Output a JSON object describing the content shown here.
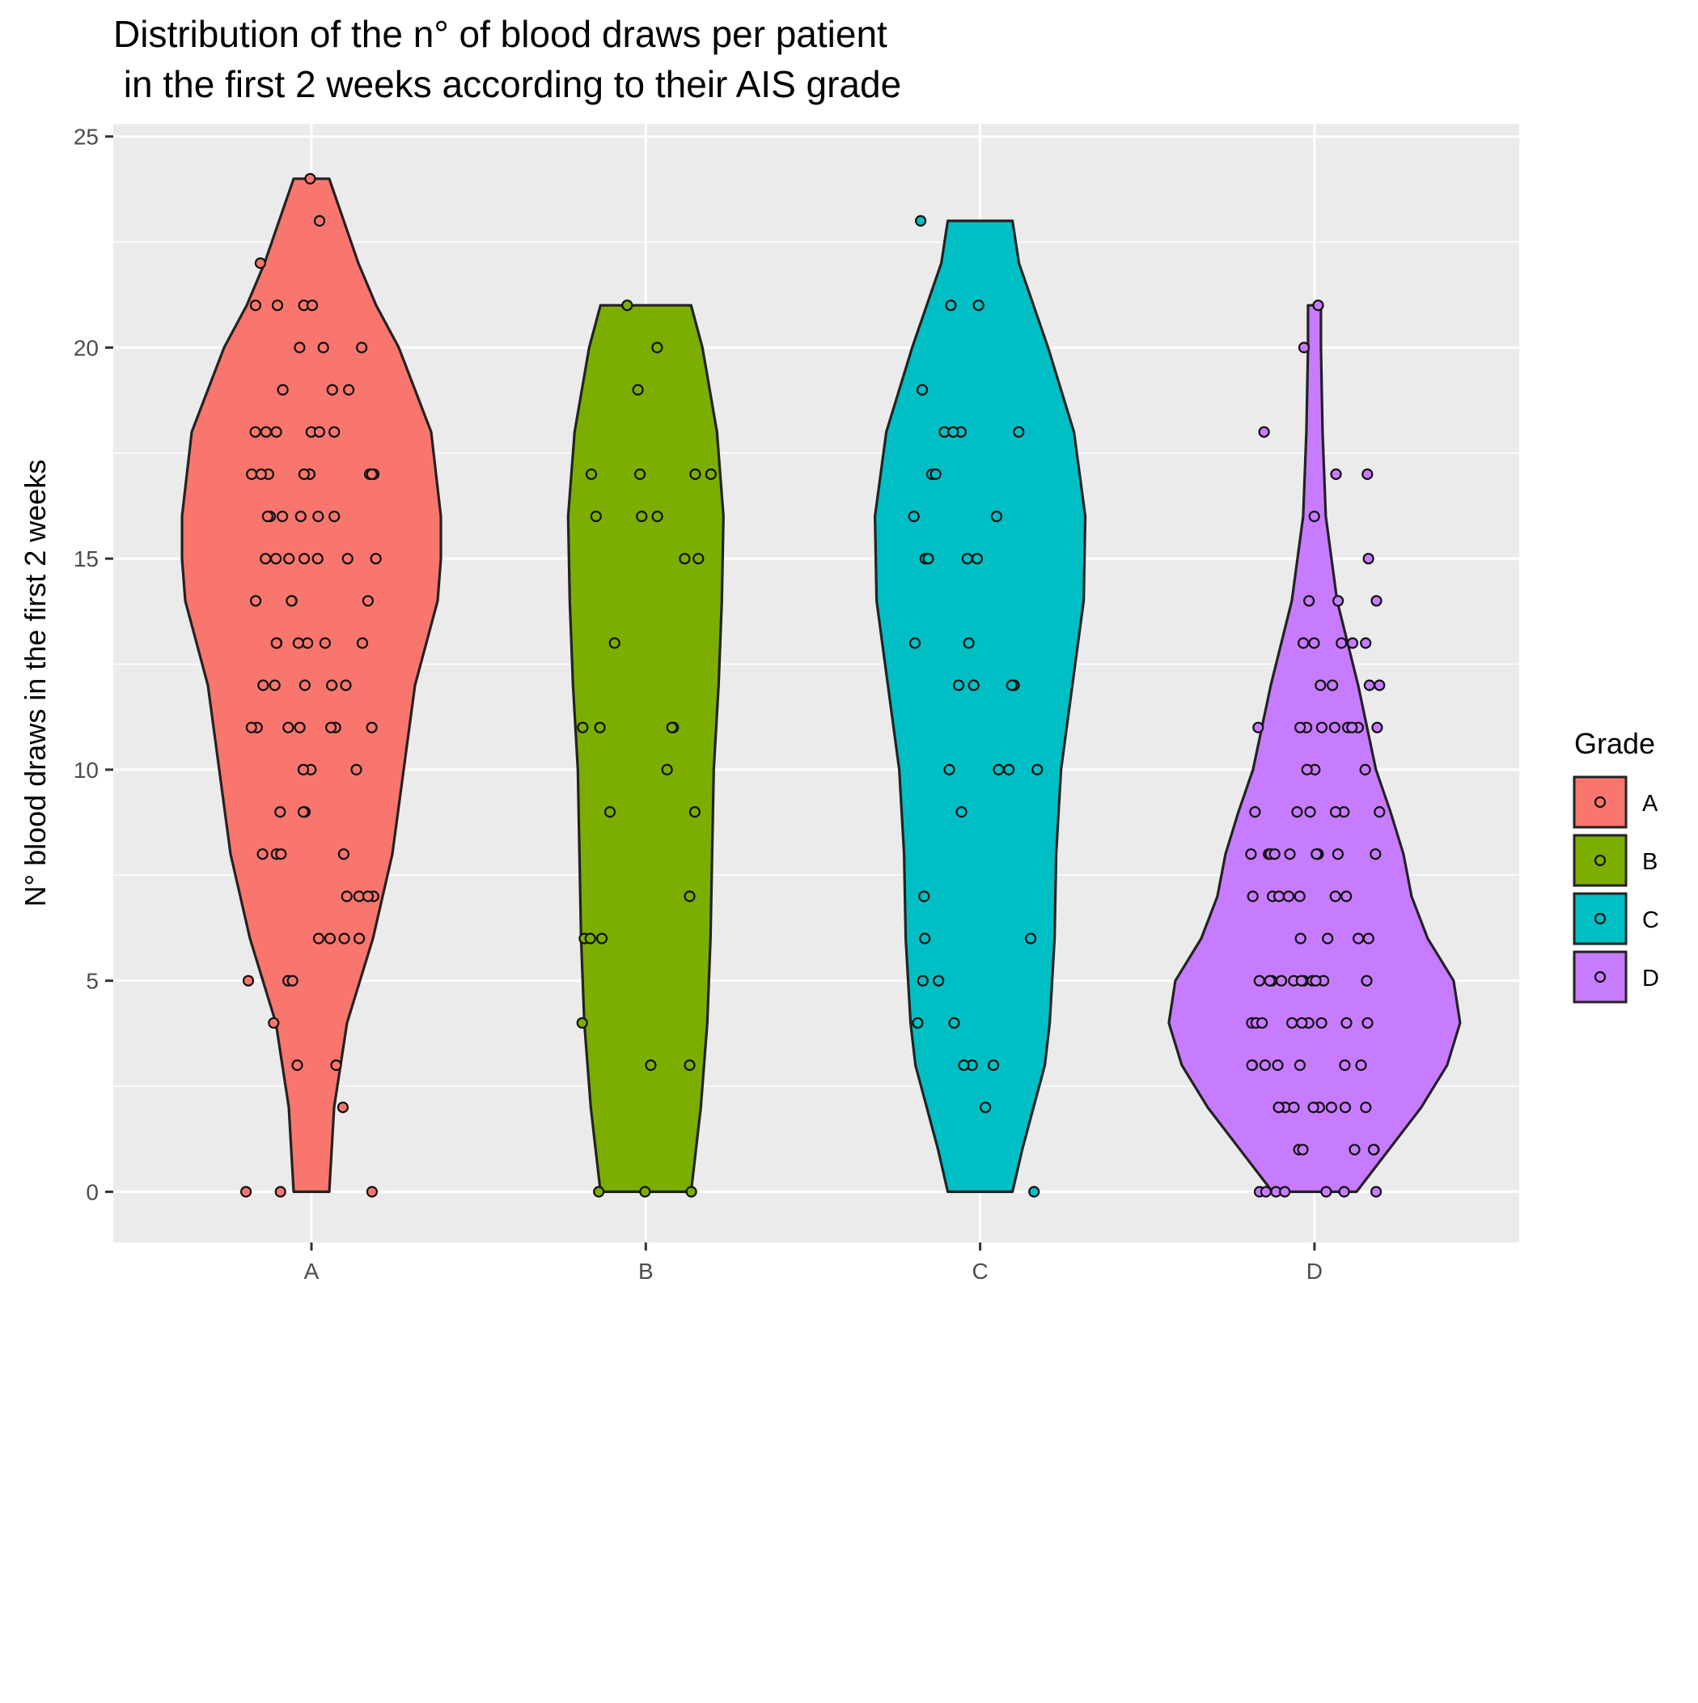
{
  "chart_data": {
    "type": "violin",
    "title_line1": "Distribution of the n° of blood draws per patient",
    "title_line2": " in the first 2 weeks according to their AIS grade",
    "xlabel": "",
    "ylabel": "N° blood draws in the first 2 weeks",
    "ylim": [
      -1.2,
      25.3
    ],
    "yticks": [
      0,
      5,
      10,
      15,
      20,
      25
    ],
    "categories": [
      "A",
      "B",
      "C",
      "D"
    ],
    "grid": true,
    "legend": {
      "title": "Grade",
      "placement": "right",
      "entries": [
        "A",
        "B",
        "C",
        "D"
      ]
    },
    "series": [
      {
        "name": "A",
        "color": "#F8766D",
        "violin_profile": [
          [
            0,
            0.11
          ],
          [
            2,
            0.14
          ],
          [
            4,
            0.22
          ],
          [
            6,
            0.38
          ],
          [
            8,
            0.5
          ],
          [
            10,
            0.57
          ],
          [
            12,
            0.64
          ],
          [
            14,
            0.78
          ],
          [
            15,
            0.8
          ],
          [
            16,
            0.8
          ],
          [
            18,
            0.74
          ],
          [
            20,
            0.54
          ],
          [
            21,
            0.4
          ],
          [
            22,
            0.29
          ],
          [
            23,
            0.2
          ],
          [
            24,
            0.11
          ]
        ],
        "points": [
          24,
          23,
          22,
          21,
          21,
          21,
          21,
          20,
          20,
          20,
          19,
          19,
          19,
          18,
          18,
          18,
          18,
          18,
          18,
          17,
          17,
          17,
          17,
          17,
          17,
          17,
          17,
          16,
          16,
          16,
          16,
          16,
          16,
          15,
          15,
          15,
          15,
          15,
          15,
          15,
          14,
          14,
          14,
          14,
          13,
          13,
          13,
          13,
          13,
          13,
          12,
          12,
          12,
          12,
          12,
          11,
          11,
          11,
          11,
          11,
          11,
          11,
          10,
          10,
          10,
          10,
          9,
          9,
          9,
          8,
          8,
          8,
          8,
          7,
          7,
          7,
          7,
          6,
          6,
          6,
          6,
          5,
          5,
          5,
          4,
          3,
          3,
          2,
          0,
          0,
          0
        ]
      },
      {
        "name": "B",
        "color": "#7CAE00",
        "violin_profile": [
          [
            0,
            0.28
          ],
          [
            2,
            0.34
          ],
          [
            4,
            0.38
          ],
          [
            6,
            0.4
          ],
          [
            8,
            0.41
          ],
          [
            10,
            0.42
          ],
          [
            12,
            0.45
          ],
          [
            14,
            0.47
          ],
          [
            16,
            0.48
          ],
          [
            18,
            0.44
          ],
          [
            20,
            0.35
          ],
          [
            21,
            0.28
          ]
        ],
        "points": [
          21,
          20,
          19,
          17,
          17,
          17,
          17,
          16,
          16,
          16,
          15,
          15,
          13,
          11,
          11,
          11,
          11,
          10,
          9,
          9,
          7,
          6,
          6,
          6,
          4,
          3,
          3,
          0,
          0,
          0
        ]
      },
      {
        "name": "C",
        "color": "#00BFC4",
        "violin_profile": [
          [
            0,
            0.2
          ],
          [
            1,
            0.26
          ],
          [
            2,
            0.33
          ],
          [
            3,
            0.4
          ],
          [
            4,
            0.43
          ],
          [
            6,
            0.46
          ],
          [
            8,
            0.47
          ],
          [
            10,
            0.5
          ],
          [
            12,
            0.57
          ],
          [
            14,
            0.64
          ],
          [
            16,
            0.65
          ],
          [
            18,
            0.58
          ],
          [
            20,
            0.42
          ],
          [
            21,
            0.33
          ],
          [
            22,
            0.24
          ],
          [
            23,
            0.2
          ]
        ],
        "points": [
          23,
          21,
          21,
          19,
          18,
          18,
          18,
          18,
          17,
          17,
          16,
          16,
          15,
          15,
          15,
          15,
          13,
          13,
          12,
          12,
          12,
          12,
          10,
          10,
          10,
          10,
          9,
          7,
          6,
          6,
          5,
          5,
          4,
          4,
          3,
          3,
          3,
          2,
          0
        ]
      },
      {
        "name": "D",
        "color": "#C77CFF",
        "violin_profile": [
          [
            0,
            0.26
          ],
          [
            1,
            0.46
          ],
          [
            2,
            0.66
          ],
          [
            3,
            0.82
          ],
          [
            4,
            0.9
          ],
          [
            5,
            0.86
          ],
          [
            6,
            0.7
          ],
          [
            7,
            0.6
          ],
          [
            8,
            0.55
          ],
          [
            9,
            0.47
          ],
          [
            10,
            0.38
          ],
          [
            12,
            0.27
          ],
          [
            14,
            0.14
          ],
          [
            16,
            0.07
          ],
          [
            18,
            0.05
          ],
          [
            20,
            0.04
          ],
          [
            21,
            0.04
          ]
        ],
        "points": [
          21,
          20,
          18,
          17,
          17,
          16,
          15,
          14,
          14,
          14,
          13,
          13,
          13,
          13,
          13,
          12,
          12,
          12,
          12,
          11,
          11,
          11,
          11,
          11,
          11,
          11,
          11,
          11,
          10,
          10,
          10,
          9,
          9,
          9,
          9,
          9,
          9,
          8,
          8,
          8,
          8,
          8,
          8,
          8,
          8,
          8,
          7,
          7,
          7,
          7,
          7,
          7,
          7,
          6,
          6,
          6,
          6,
          5,
          5,
          5,
          5,
          5,
          5,
          5,
          5,
          5,
          5,
          5,
          4,
          4,
          4,
          4,
          4,
          4,
          4,
          4,
          4,
          3,
          3,
          3,
          3,
          3,
          3,
          3,
          2,
          2,
          2,
          2,
          2,
          2,
          2,
          2,
          2,
          1,
          1,
          1,
          1,
          1,
          0,
          0,
          0,
          0,
          0,
          0,
          0
        ]
      }
    ]
  }
}
